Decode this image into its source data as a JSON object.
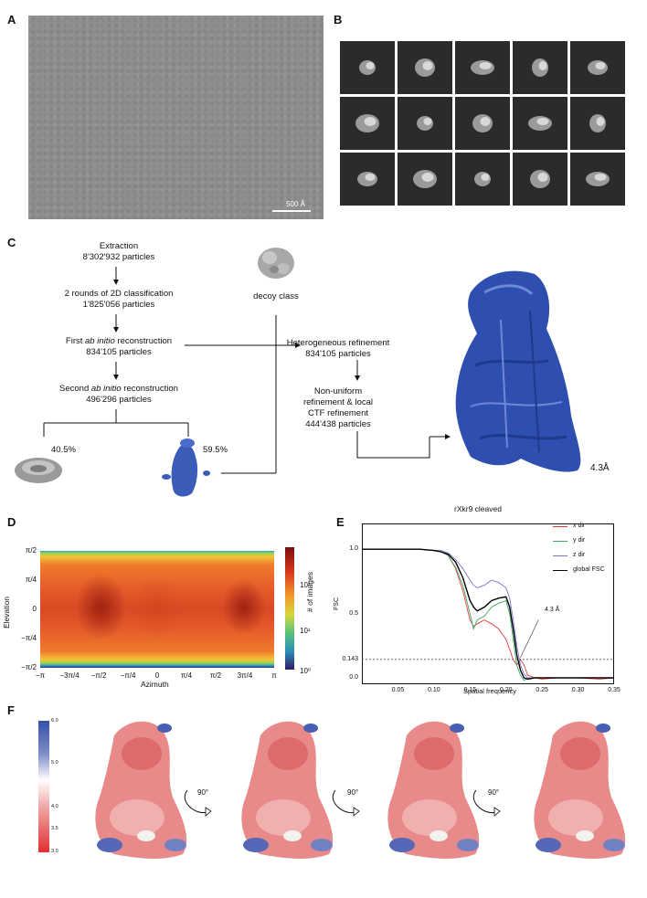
{
  "panels": {
    "A": "A",
    "B": "B",
    "C": "C",
    "D": "D",
    "E": "E",
    "F": "F"
  },
  "panel_a": {
    "scalebar": "500 Å"
  },
  "panel_c": {
    "step1": [
      "Extraction",
      "8'302'932 particles"
    ],
    "step2": [
      "2 rounds of 2D classification",
      "1'825'056 particles"
    ],
    "step3_prefix": "First ",
    "step3_italic": "ab initio",
    "step3_suffix": " reconstruction",
    "step3_count": "834'105 particles",
    "step4_prefix": "Second ",
    "step4_italic": "ab initio",
    "step4_suffix": " reconstruction",
    "step4_count": "496'296 particles",
    "decoy": "decoy class",
    "het": [
      "Heterogeneous refinement",
      "834'105 particles"
    ],
    "nu": [
      "Non-uniform",
      "refinement & local",
      "CTF refinement",
      "444'438 particles"
    ],
    "pct_left": "40.5%",
    "pct_right": "59.5%",
    "resolution": "4.3Å"
  },
  "panel_d": {
    "ylabel": "Elevation",
    "xlabel": "Azimuth",
    "cbar_label": "# of images",
    "yticks": [
      "π/2",
      "π/4",
      "0",
      "−π/4",
      "−π/2"
    ],
    "xticks": [
      "−π",
      "−3π/4",
      "−π/2",
      "−π/4",
      "0",
      "π/4",
      "π/2",
      "3π/4",
      "π"
    ],
    "cbar_ticks": [
      "10²",
      "10¹",
      "10⁰"
    ]
  },
  "panel_f": {
    "scale_ticks": [
      "6.0",
      "5.0",
      "4.0",
      "3.5",
      "3.0"
    ],
    "rot": [
      "90°",
      "90°",
      "90°"
    ]
  },
  "chart_data": {
    "type": "line",
    "title": "rXkr9 cleaved",
    "xlabel": "Spatial frequency",
    "ylabel": "FSC",
    "xlim": [
      0,
      0.35
    ],
    "ylim": [
      -0.05,
      1.2
    ],
    "xticks": [
      "0.05",
      "0.10",
      "0.15",
      "0.20",
      "0.25",
      "0.30",
      "0.35"
    ],
    "yticks": [
      "1.0",
      "0.5",
      "0.143",
      "0.0"
    ],
    "threshold": 0.143,
    "annotation": "4.3 Å",
    "legend_position": "top-right",
    "x": [
      0,
      0.02,
      0.05,
      0.08,
      0.1,
      0.11,
      0.12,
      0.13,
      0.14,
      0.15,
      0.155,
      0.16,
      0.17,
      0.18,
      0.19,
      0.2,
      0.205,
      0.21,
      0.215,
      0.22,
      0.225,
      0.23,
      0.24,
      0.25,
      0.27,
      0.3,
      0.33,
      0.35
    ],
    "series": [
      {
        "name": "x dir",
        "color": "#e23b3b",
        "values": [
          1.0,
          1.0,
          1.0,
          1.0,
          0.99,
          0.98,
          0.95,
          0.85,
          0.68,
          0.45,
          0.4,
          0.42,
          0.45,
          0.42,
          0.38,
          0.3,
          0.22,
          0.14,
          0.1,
          0.14,
          0.1,
          0.02,
          0.0,
          -0.01,
          0.0,
          0.0,
          -0.01,
          0.0
        ]
      },
      {
        "name": "y dir",
        "color": "#3aa860",
        "values": [
          1.0,
          1.0,
          1.0,
          1.0,
          0.99,
          0.98,
          0.95,
          0.86,
          0.72,
          0.5,
          0.38,
          0.45,
          0.48,
          0.55,
          0.58,
          0.6,
          0.5,
          0.3,
          0.1,
          0.02,
          -0.02,
          0.0,
          0.0,
          0.0,
          0.0,
          0.0,
          0.0,
          0.0
        ]
      },
      {
        "name": "z dir",
        "color": "#7a73cf",
        "values": [
          1.0,
          1.0,
          1.0,
          1.0,
          0.99,
          0.99,
          0.97,
          0.92,
          0.85,
          0.76,
          0.72,
          0.7,
          0.72,
          0.76,
          0.74,
          0.7,
          0.62,
          0.45,
          0.25,
          0.1,
          0.03,
          0.0,
          0.0,
          0.0,
          0.0,
          0.0,
          0.0,
          0.0
        ]
      },
      {
        "name": "global FSC",
        "color": "#000000",
        "values": [
          1.0,
          1.0,
          1.0,
          1.0,
          0.99,
          0.98,
          0.96,
          0.9,
          0.78,
          0.6,
          0.55,
          0.52,
          0.55,
          0.6,
          0.62,
          0.63,
          0.55,
          0.38,
          0.18,
          0.06,
          0.0,
          -0.01,
          0.0,
          0.0,
          0.0,
          0.0,
          0.0,
          0.0
        ]
      }
    ]
  }
}
